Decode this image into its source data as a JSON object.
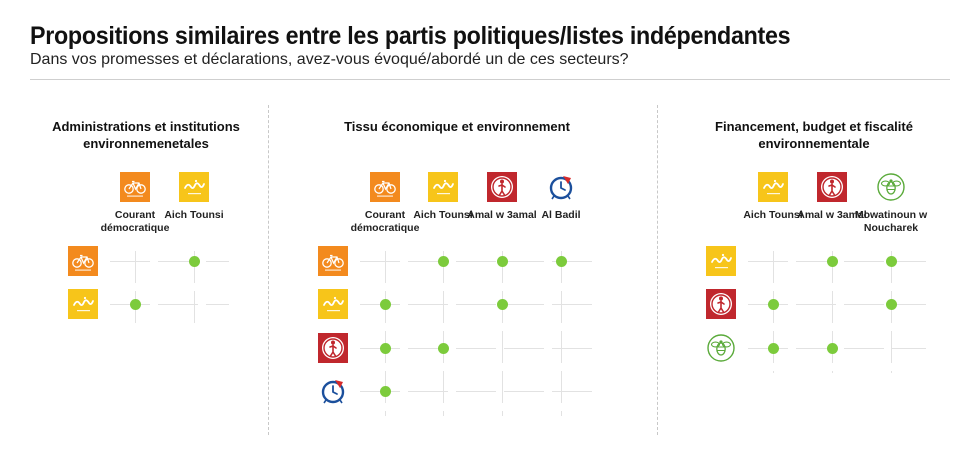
{
  "header": {
    "title": "Propositions similaires entre les partis politiques/listes indépendantes",
    "subtitle": "Dans vos promesses et déclarations, avez-vous évoqué/abordé un de ces secteurs?"
  },
  "colors": {
    "dot": "#7ccb3c",
    "courant": "#f38a1e",
    "aich": "#f7c51a",
    "amal": "#c0272d",
    "albadil": "#1b4f9c",
    "mowatinoun": "#5aaa3a"
  },
  "parties": {
    "courant": {
      "label": "Courant démocratique",
      "icon": "bicycle-logo-icon"
    },
    "aich": {
      "label": "Aich Tounsi",
      "icon": "aich-tounsi-logo-icon"
    },
    "amal": {
      "label": "Amal w 3amal",
      "icon": "amal-w-3amal-logo-icon"
    },
    "albadil": {
      "label": "Al Badil",
      "icon": "al-badil-logo-icon"
    },
    "mowatinoun": {
      "label": "Mowatinoun w Noucharek",
      "icon": "bee-logo-icon"
    }
  },
  "chart_data": [
    {
      "type": "table",
      "title": "Administrations et institutions environnemenetales",
      "columns": [
        "Courant démocratique",
        "Aich Tounsi"
      ],
      "rows": [
        "Courant démocratique",
        "Aich Tounsi"
      ],
      "matches": [
        [
          0,
          1
        ],
        [
          1,
          0
        ]
      ]
    },
    {
      "type": "table",
      "title": "Tissu économique et environnement",
      "columns": [
        "Courant démocratique",
        "Aich Tounsi",
        "Amal w 3amal",
        "Al Badil"
      ],
      "rows": [
        "Courant démocratique",
        "Aich Tounsi",
        "Amal w 3amal",
        "Al Badil"
      ],
      "matches": [
        [
          0,
          1
        ],
        [
          0,
          2
        ],
        [
          0,
          3
        ],
        [
          1,
          0
        ],
        [
          1,
          2
        ],
        [
          2,
          0
        ],
        [
          2,
          1
        ],
        [
          3,
          0
        ]
      ]
    },
    {
      "type": "table",
      "title": "Financement, budget et fiscalité environnementale",
      "columns": [
        "Aich Tounsi",
        "Amal w 3amal",
        "Mowatinoun w Noucharek"
      ],
      "rows": [
        "Aich Tounsi",
        "Amal w 3amal",
        "Mowatinoun w Noucharek"
      ],
      "matches": [
        [
          0,
          1
        ],
        [
          0,
          2
        ],
        [
          1,
          0
        ],
        [
          1,
          2
        ],
        [
          2,
          0
        ],
        [
          2,
          1
        ]
      ]
    }
  ]
}
